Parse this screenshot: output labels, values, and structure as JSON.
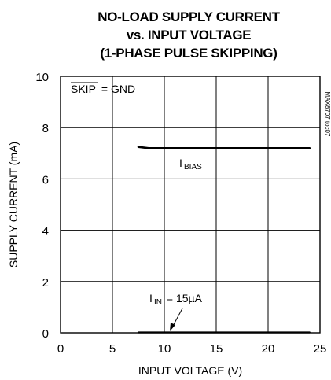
{
  "chart_data": {
    "type": "line",
    "title": [
      "NO-LOAD SUPPLY CURRENT",
      "vs. INPUT VOLTAGE",
      "(1-PHASE PULSE SKIPPING)"
    ],
    "xlabel": "INPUT VOLTAGE (V)",
    "ylabel": "SUPPLY CURRENT (mA)",
    "xlim": [
      0,
      25
    ],
    "ylim": [
      0,
      10
    ],
    "xticks": [
      "0",
      "5",
      "10",
      "15",
      "20",
      "25"
    ],
    "yticks": [
      "0",
      "2",
      "4",
      "6",
      "8",
      "10"
    ],
    "grid": true,
    "series": [
      {
        "x": [
          7.5,
          8.5,
          10,
          12,
          15,
          18,
          20,
          22,
          24
        ],
        "y": [
          7.25,
          7.2,
          7.2,
          7.2,
          7.2,
          7.2,
          7.2,
          7.2,
          7.2
        ]
      },
      {
        "x": [
          7.5,
          10,
          12,
          15,
          18,
          20,
          22,
          24
        ],
        "y": [
          0.015,
          0.015,
          0.015,
          0.015,
          0.015,
          0.015,
          0.015,
          0.015
        ]
      }
    ],
    "annotations": {
      "condition": {
        "overline": "SKIP",
        "rest": " = GND"
      },
      "bias_label": {
        "main": "I",
        "sub": "BIAS"
      },
      "in_label": {
        "main": "I",
        "sub": "IN",
        "rest": " = 15µA"
      },
      "code": "MAX8707 toc07"
    }
  }
}
